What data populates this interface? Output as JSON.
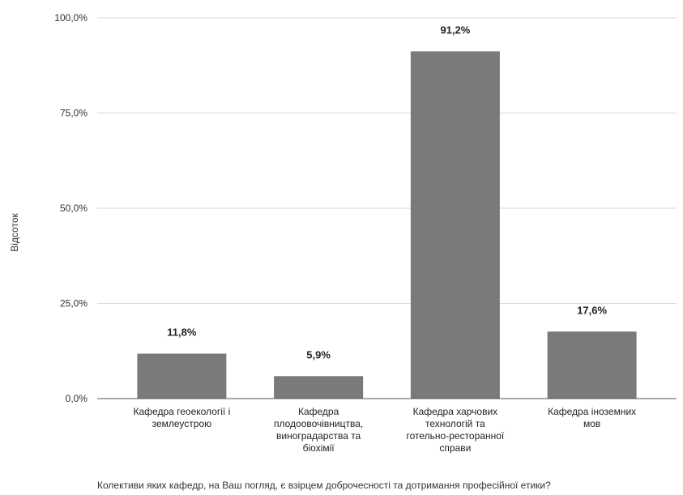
{
  "chart_data": {
    "type": "bar",
    "categories": [
      [
        "Кафедра геоекології і",
        "землеустрою"
      ],
      [
        "Кафедра",
        "плодоовочівництва,",
        "виноградарства та",
        "біохімії"
      ],
      [
        "Кафедра харчових",
        "технологій та",
        "готельно-ресторанної",
        "справи"
      ],
      [
        "Кафедра іноземних",
        "мов"
      ]
    ],
    "values": [
      11.8,
      5.9,
      91.2,
      17.6
    ],
    "value_labels": [
      "11,8%",
      "5,9%",
      "91,2%",
      "17,6%"
    ],
    "ylim": [
      0,
      100
    ],
    "yticks": [
      0,
      25,
      50,
      75,
      100
    ],
    "ytick_labels": [
      "0,0%",
      "25,0%",
      "50,0%",
      "75,0%",
      "100,0%"
    ],
    "ylabel": "Відсоток",
    "xlabel": "Колективи яких кафедр, на Ваш погляд, є взірцем доброчесності та дотримання професійної етики?",
    "grid": true,
    "colors": {
      "bar": "#7a7a7a",
      "grid": "#d9d9d9",
      "axis": "#555555"
    }
  }
}
